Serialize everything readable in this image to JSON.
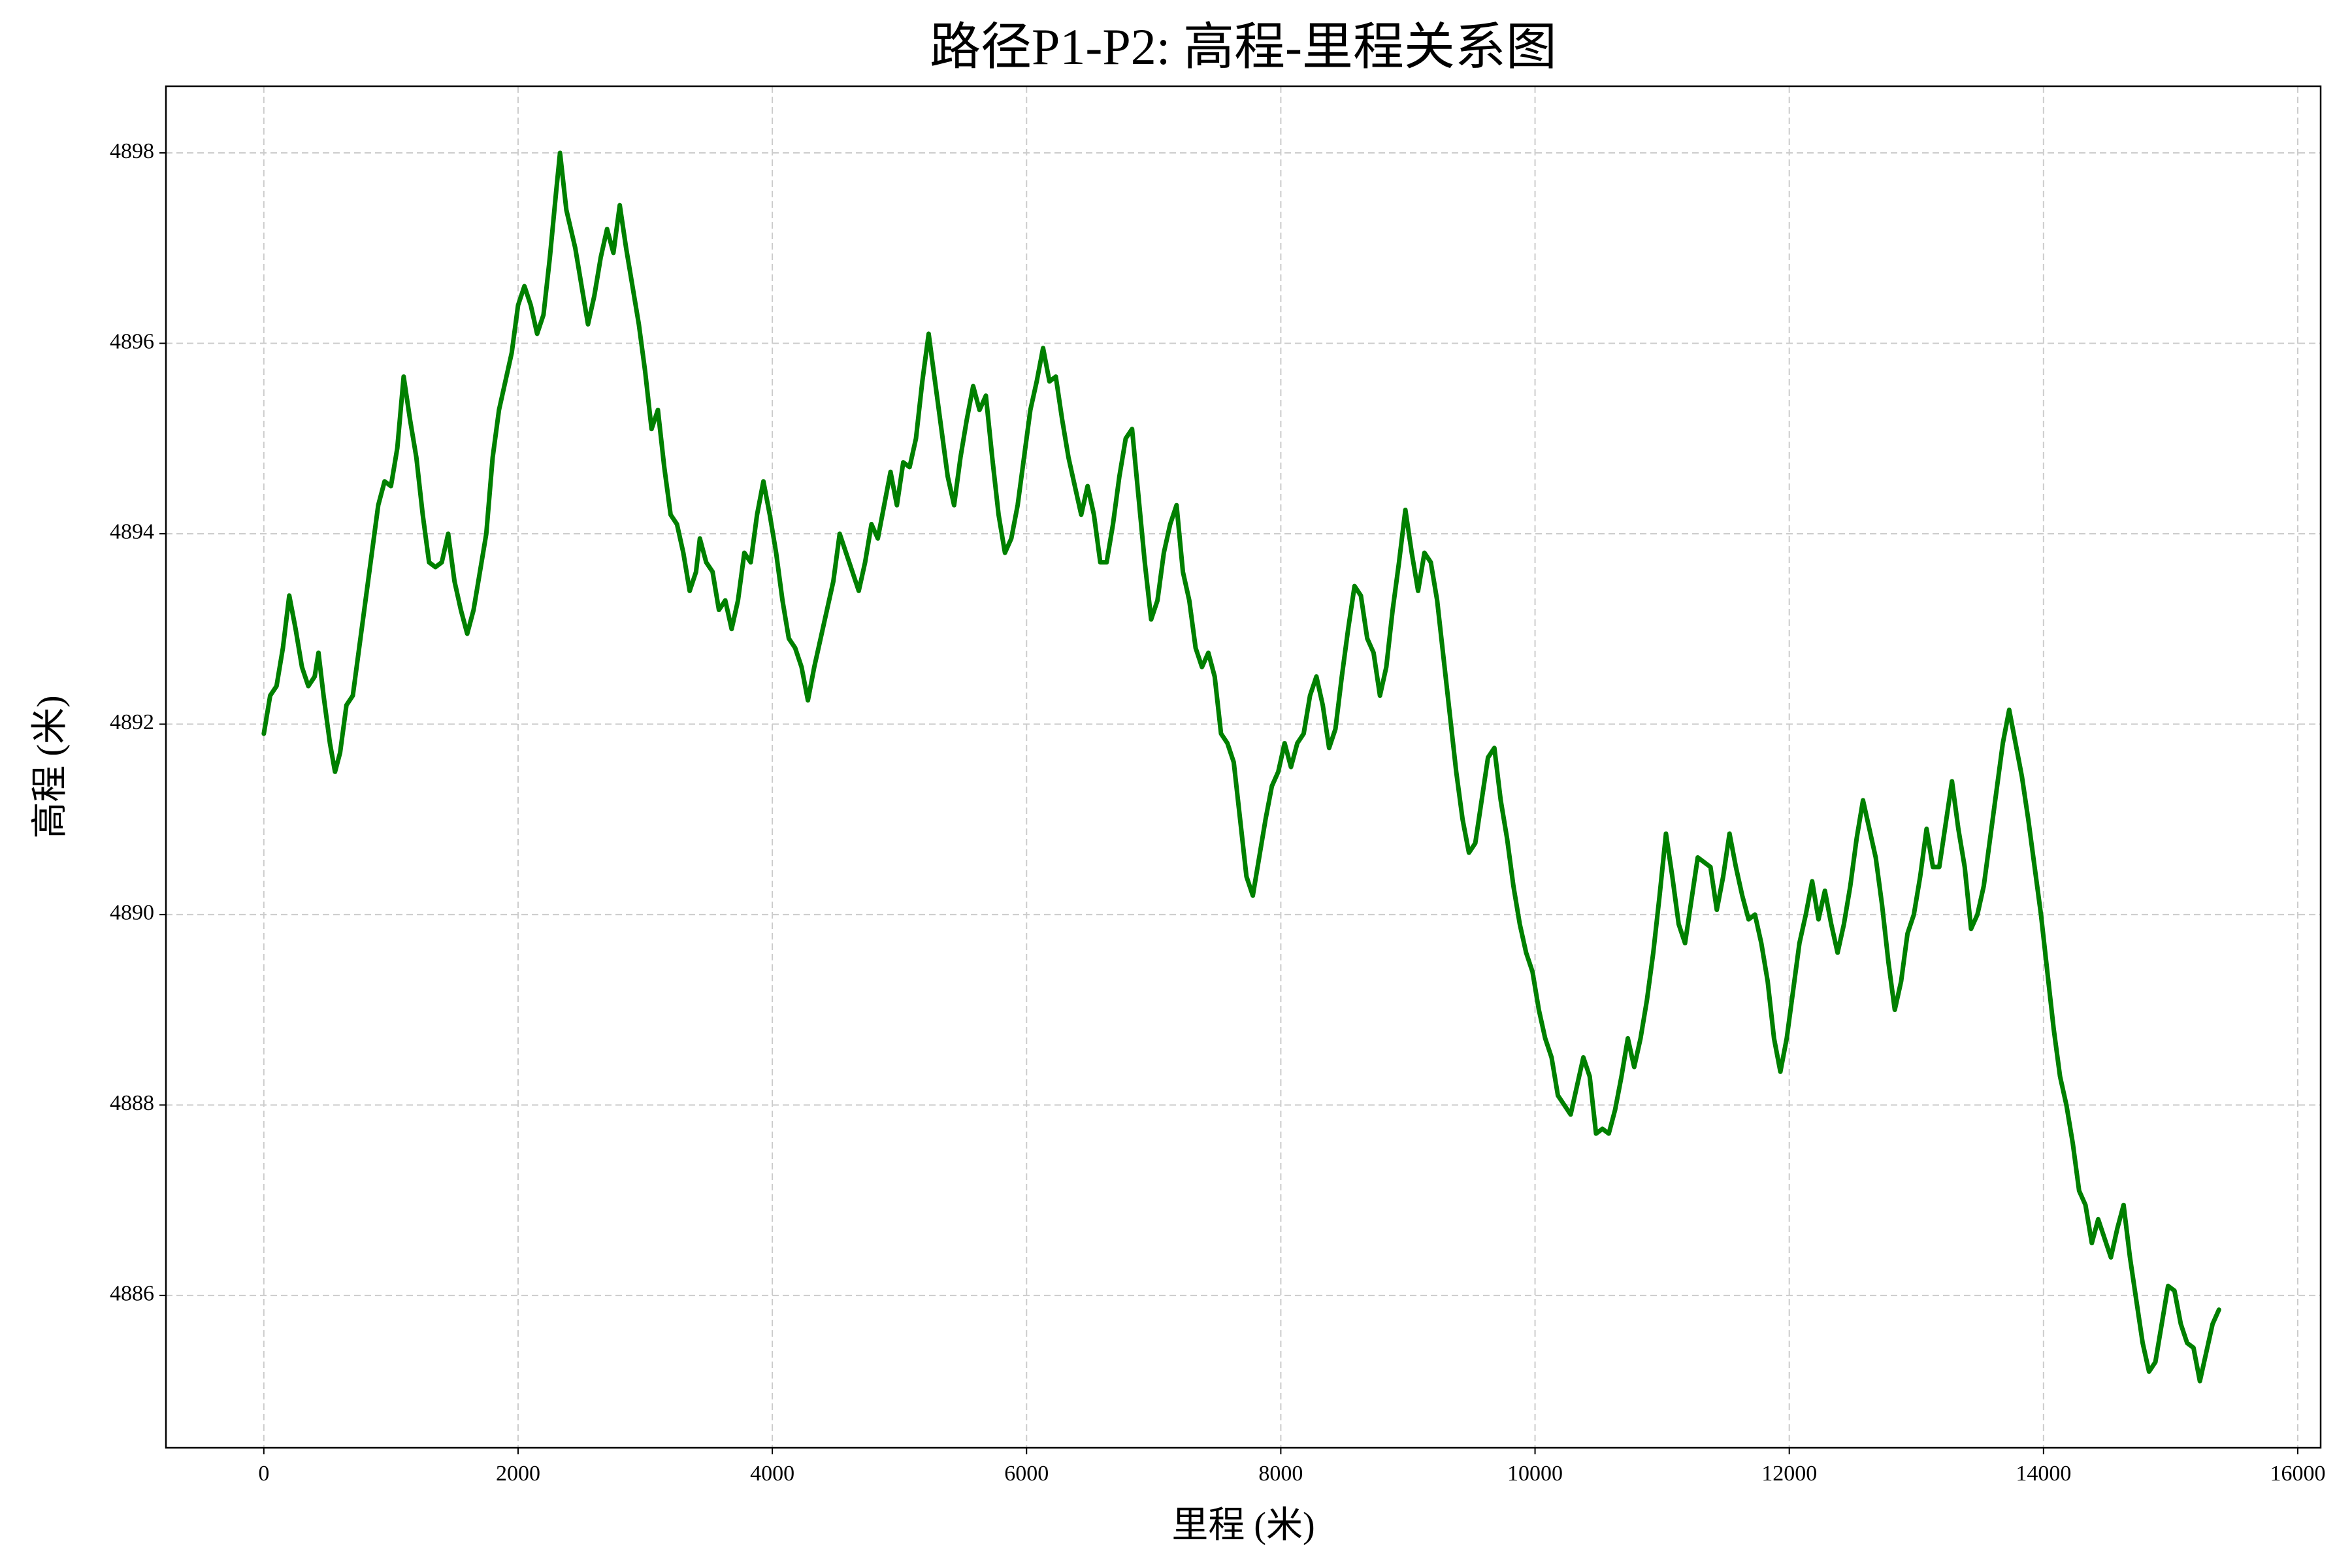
{
  "chart_data": {
    "type": "line",
    "title": "路径P1-P2: 高程-里程关系图",
    "x_label": "里程 (米)",
    "y_label": "高程 (米)",
    "color": "#008000",
    "grid": true,
    "xlim": [
      -770,
      16180
    ],
    "ylim": [
      4884.4,
      4898.7
    ],
    "xticks": [
      0,
      2000,
      4000,
      6000,
      8000,
      10000,
      12000,
      14000,
      16000
    ],
    "yticks": [
      4886,
      4888,
      4890,
      4892,
      4894,
      4896,
      4898
    ],
    "x": [
      0,
      50,
      100,
      150,
      200,
      250,
      300,
      350,
      400,
      430,
      470,
      520,
      560,
      600,
      650,
      700,
      750,
      800,
      850,
      900,
      950,
      1000,
      1050,
      1100,
      1150,
      1200,
      1250,
      1300,
      1350,
      1400,
      1450,
      1500,
      1550,
      1600,
      1650,
      1700,
      1750,
      1800,
      1850,
      1900,
      1950,
      2000,
      2050,
      2100,
      2150,
      2200,
      2250,
      2300,
      2330,
      2380,
      2450,
      2500,
      2550,
      2600,
      2650,
      2700,
      2750,
      2800,
      2850,
      2900,
      2950,
      3000,
      3050,
      3100,
      3150,
      3200,
      3250,
      3300,
      3350,
      3400,
      3430,
      3480,
      3530,
      3580,
      3630,
      3680,
      3730,
      3780,
      3830,
      3880,
      3930,
      3980,
      4030,
      4080,
      4130,
      4180,
      4230,
      4280,
      4330,
      4380,
      4430,
      4480,
      4530,
      4580,
      4630,
      4680,
      4730,
      4780,
      4830,
      4880,
      4930,
      4980,
      5030,
      5080,
      5130,
      5180,
      5230,
      5280,
      5330,
      5380,
      5430,
      5480,
      5530,
      5580,
      5630,
      5680,
      5730,
      5780,
      5830,
      5880,
      5930,
      5980,
      6030,
      6080,
      6130,
      6180,
      6230,
      6280,
      6330,
      6380,
      6430,
      6480,
      6530,
      6580,
      6630,
      6680,
      6730,
      6780,
      6830,
      6880,
      6930,
      6980,
      7030,
      7080,
      7130,
      7180,
      7230,
      7280,
      7330,
      7380,
      7430,
      7480,
      7530,
      7580,
      7630,
      7680,
      7730,
      7780,
      7830,
      7880,
      7930,
      7980,
      8030,
      8080,
      8130,
      8180,
      8230,
      8280,
      8330,
      8380,
      8430,
      8480,
      8530,
      8580,
      8630,
      8680,
      8730,
      8780,
      8830,
      8880,
      8930,
      8980,
      9030,
      9080,
      9130,
      9180,
      9230,
      9280,
      9330,
      9380,
      9430,
      9480,
      9530,
      9580,
      9630,
      9680,
      9730,
      9780,
      9830,
      9880,
      9930,
      9980,
      10030,
      10080,
      10130,
      10180,
      10230,
      10280,
      10330,
      10380,
      10430,
      10480,
      10530,
      10580,
      10630,
      10680,
      10730,
      10780,
      10830,
      10880,
      10930,
      10980,
      11030,
      11080,
      11130,
      11180,
      11230,
      11280,
      11330,
      11380,
      11430,
      11480,
      11530,
      11580,
      11630,
      11680,
      11730,
      11780,
      11830,
      11880,
      11930,
      11980,
      12030,
      12080,
      12130,
      12180,
      12230,
      12280,
      12330,
      12380,
      12430,
      12480,
      12530,
      12580,
      12630,
      12680,
      12730,
      12780,
      12830,
      12880,
      12930,
      12980,
      13030,
      13080,
      13130,
      13180,
      13230,
      13280,
      13330,
      13380,
      13430,
      13480,
      13530,
      13580,
      13630,
      13680,
      13730,
      13780,
      13830,
      13880,
      13930,
      13980,
      14030,
      14080,
      14130,
      14180,
      14230,
      14280,
      14330,
      14380,
      14430,
      14480,
      14530,
      14580,
      14630,
      14680,
      14730,
      14780,
      14830,
      14880,
      14930,
      14980,
      15030,
      15080,
      15130,
      15180,
      15230,
      15280,
      15330,
      15380
    ],
    "values": [
      4891.9,
      4892.3,
      4892.4,
      4892.8,
      4893.35,
      4893.0,
      4892.6,
      4892.4,
      4892.5,
      4892.75,
      4892.3,
      4891.8,
      4891.5,
      4891.7,
      4892.2,
      4892.3,
      4892.8,
      4893.3,
      4893.8,
      4894.3,
      4894.55,
      4894.5,
      4894.9,
      4895.65,
      4895.2,
      4894.8,
      4894.2,
      4893.7,
      4893.65,
      4893.7,
      4894.0,
      4893.5,
      4893.2,
      4892.95,
      4893.2,
      4893.6,
      4894.0,
      4894.8,
      4895.3,
      4895.6,
      4895.9,
      4896.4,
      4896.6,
      4896.4,
      4896.1,
      4896.3,
      4896.9,
      4897.6,
      4898.0,
      4897.4,
      4897.0,
      4896.6,
      4896.2,
      4896.5,
      4896.9,
      4897.2,
      4896.95,
      4897.45,
      4897.0,
      4896.6,
      4896.2,
      4895.7,
      4895.1,
      4895.3,
      4894.7,
      4894.2,
      4894.1,
      4893.8,
      4893.4,
      4893.6,
      4893.95,
      4893.7,
      4893.6,
      4893.2,
      4893.3,
      4893.0,
      4893.3,
      4893.8,
      4893.7,
      4894.2,
      4894.55,
      4894.2,
      4893.8,
      4893.3,
      4892.9,
      4892.8,
      4892.6,
      4892.25,
      4892.6,
      4892.9,
      4893.2,
      4893.5,
      4894.0,
      4893.8,
      4893.6,
      4893.4,
      4893.7,
      4894.1,
      4893.95,
      4894.3,
      4894.65,
      4894.3,
      4894.75,
      4894.7,
      4895.0,
      4895.6,
      4896.1,
      4895.6,
      4895.1,
      4894.6,
      4894.3,
      4894.8,
      4895.2,
      4895.55,
      4895.3,
      4895.45,
      4894.8,
      4894.2,
      4893.8,
      4893.95,
      4894.3,
      4894.8,
      4895.3,
      4895.6,
      4895.95,
      4895.6,
      4895.65,
      4895.2,
      4894.8,
      4894.5,
      4894.2,
      4894.5,
      4894.2,
      4893.7,
      4893.7,
      4894.1,
      4894.6,
      4895.0,
      4895.1,
      4894.4,
      4893.7,
      4893.1,
      4893.3,
      4893.8,
      4894.1,
      4894.3,
      4893.6,
      4893.3,
      4892.8,
      4892.6,
      4892.75,
      4892.5,
      4891.9,
      4891.8,
      4891.6,
      4891.0,
      4890.4,
      4890.2,
      4890.6,
      4891.0,
      4891.35,
      4891.5,
      4891.8,
      4891.55,
      4891.8,
      4891.9,
      4892.3,
      4892.5,
      4892.2,
      4891.75,
      4891.95,
      4892.5,
      4893.0,
      4893.45,
      4893.35,
      4892.9,
      4892.75,
      4892.3,
      4892.6,
      4893.2,
      4893.7,
      4894.25,
      4893.8,
      4893.4,
      4893.8,
      4893.7,
      4893.3,
      4892.7,
      4892.1,
      4891.5,
      4891.0,
      4890.65,
      4890.75,
      4891.2,
      4891.65,
      4891.75,
      4891.2,
      4890.8,
      4890.3,
      4889.9,
      4889.6,
      4889.4,
      4889.0,
      4888.7,
      4888.5,
      4888.1,
      4888.0,
      4887.9,
      4888.2,
      4888.5,
      4888.3,
      4887.7,
      4887.75,
      4887.7,
      4887.95,
      4888.3,
      4888.7,
      4888.4,
      4888.7,
      4889.1,
      4889.6,
      4890.2,
      4890.85,
      4890.4,
      4889.9,
      4889.7,
      4890.15,
      4890.6,
      4890.55,
      4890.5,
      4890.05,
      4890.4,
      4890.85,
      4890.5,
      4890.2,
      4889.95,
      4890.0,
      4889.7,
      4889.3,
      4888.7,
      4888.35,
      4888.7,
      4889.2,
      4889.7,
      4890.0,
      4890.35,
      4889.95,
      4890.25,
      4889.9,
      4889.6,
      4889.9,
      4890.3,
      4890.8,
      4891.2,
      4890.9,
      4890.6,
      4890.1,
      4889.5,
      4889.0,
      4889.3,
      4889.8,
      4890.0,
      4890.4,
      4890.9,
      4890.5,
      4890.5,
      4890.95,
      4891.4,
      4890.9,
      4890.5,
      4889.85,
      4890.0,
      4890.3,
      4890.8,
      4891.3,
      4891.8,
      4892.15,
      4891.8,
      4891.45,
      4891.0,
      4890.5,
      4890.0,
      4889.4,
      4888.8,
      4888.3,
      4888.0,
      4887.6,
      4887.1,
      4886.95,
      4886.55,
      4886.8,
      4886.6,
      4886.4,
      4886.7,
      4886.95,
      4886.4,
      4885.95,
      4885.5,
      4885.2,
      4885.3,
      4885.7,
      4886.1,
      4886.05,
      4885.7,
      4885.5,
      4885.45,
      4885.1,
      4885.4,
      4885.7,
      4885.85
    ]
  }
}
